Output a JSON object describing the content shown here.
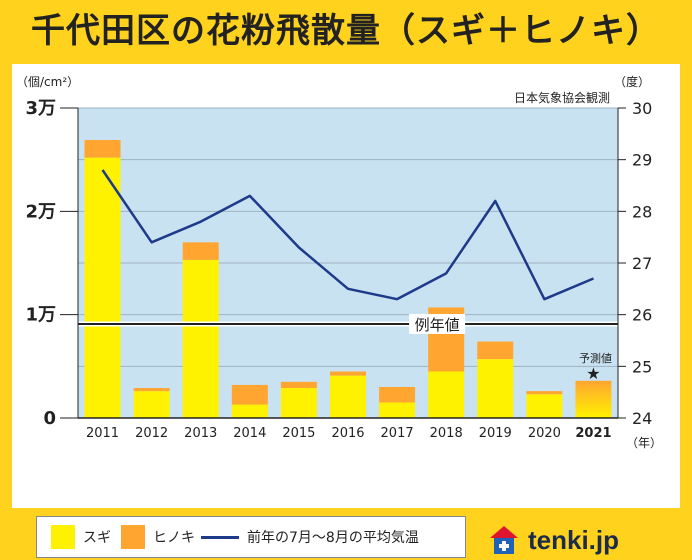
{
  "title": "千代田区の花粉飛散量（スギ＋ヒノキ）",
  "source": "日本気象協会観測",
  "logo": {
    "icon": "tenki-house-icon",
    "text": "tenki.jp"
  },
  "colors": {
    "sugi": "#fff200",
    "hinoki": "#ffa530",
    "temp": "#1e3a8a",
    "plot_bg": "#c9e2f2",
    "highlight_year": "#e0152f"
  },
  "chart_data": {
    "type": "bar",
    "categories": [
      "2011",
      "2012",
      "2013",
      "2014",
      "2015",
      "2016",
      "2017",
      "2018",
      "2019",
      "2020",
      "2021"
    ],
    "highlight_category": "2021",
    "x_unit": "（年）",
    "series": [
      {
        "name": "スギ",
        "values": [
          25200,
          2600,
          15300,
          1300,
          2900,
          4100,
          1500,
          4500,
          5700,
          2300,
          null
        ]
      },
      {
        "name": "ヒノキ",
        "values": [
          1700,
          300,
          1700,
          1900,
          600,
          400,
          1500,
          6200,
          1700,
          300,
          null
        ]
      },
      {
        "name": "前年の7月〜8月の平均気温",
        "type": "line",
        "axis": "right",
        "values": [
          28.8,
          27.4,
          27.8,
          28.3,
          27.3,
          26.5,
          26.3,
          26.8,
          28.2,
          26.3,
          26.7
        ]
      }
    ],
    "forecast": {
      "category": "2021",
      "value": 3600,
      "label": "予測値"
    },
    "left_axis": {
      "unit": "（個/cm²）",
      "ylim": [
        0,
        30000
      ],
      "ticks": [
        {
          "value": 0,
          "label": "0"
        },
        {
          "value": 10000,
          "label": "1万"
        },
        {
          "value": 20000,
          "label": "2万"
        },
        {
          "value": 30000,
          "label": "3万"
        }
      ]
    },
    "right_axis": {
      "unit": "（度）",
      "ylim": [
        24,
        30
      ],
      "ticks": [
        {
          "value": 24,
          "label": "24"
        },
        {
          "value": 25,
          "label": "25"
        },
        {
          "value": 26,
          "label": "26"
        },
        {
          "value": 27,
          "label": "27"
        },
        {
          "value": 28,
          "label": "28"
        },
        {
          "value": 29,
          "label": "29"
        },
        {
          "value": 30,
          "label": "30"
        }
      ]
    },
    "reference_line": {
      "value": 9100,
      "label": "例年値"
    },
    "legend": [
      "スギ",
      "ヒノキ",
      "前年の7月〜8月の平均気温"
    ],
    "legend_position": "bottom-left",
    "grid": true
  }
}
